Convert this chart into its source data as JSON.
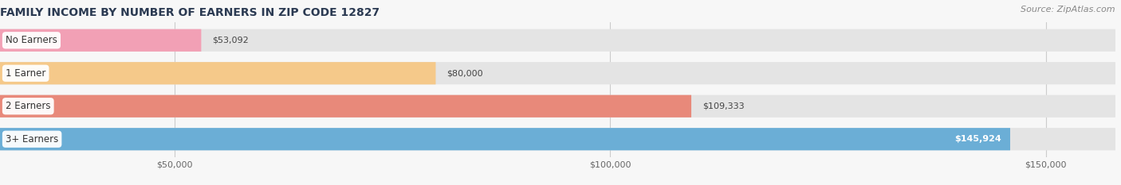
{
  "title": "FAMILY INCOME BY NUMBER OF EARNERS IN ZIP CODE 12827",
  "source": "Source: ZipAtlas.com",
  "categories": [
    "No Earners",
    "1 Earner",
    "2 Earners",
    "3+ Earners"
  ],
  "values": [
    53092,
    80000,
    109333,
    145924
  ],
  "bar_colors": [
    "#f2a0b5",
    "#f5c98a",
    "#e8897a",
    "#6baed6"
  ],
  "value_labels": [
    "$53,092",
    "$80,000",
    "$109,333",
    "$145,924"
  ],
  "xlim_min": 30000,
  "xlim_max": 158000,
  "xticks": [
    50000,
    100000,
    150000
  ],
  "xtick_labels": [
    "$50,000",
    "$100,000",
    "$150,000"
  ],
  "background_color": "#f7f7f7",
  "bar_bg_color": "#e4e4e4",
  "title_color": "#2b3a52",
  "source_color": "#888888",
  "title_fontsize": 10,
  "source_fontsize": 8,
  "bar_height": 0.68,
  "bar_label_fontsize": 8,
  "category_fontsize": 8.5,
  "tick_fontsize": 8
}
